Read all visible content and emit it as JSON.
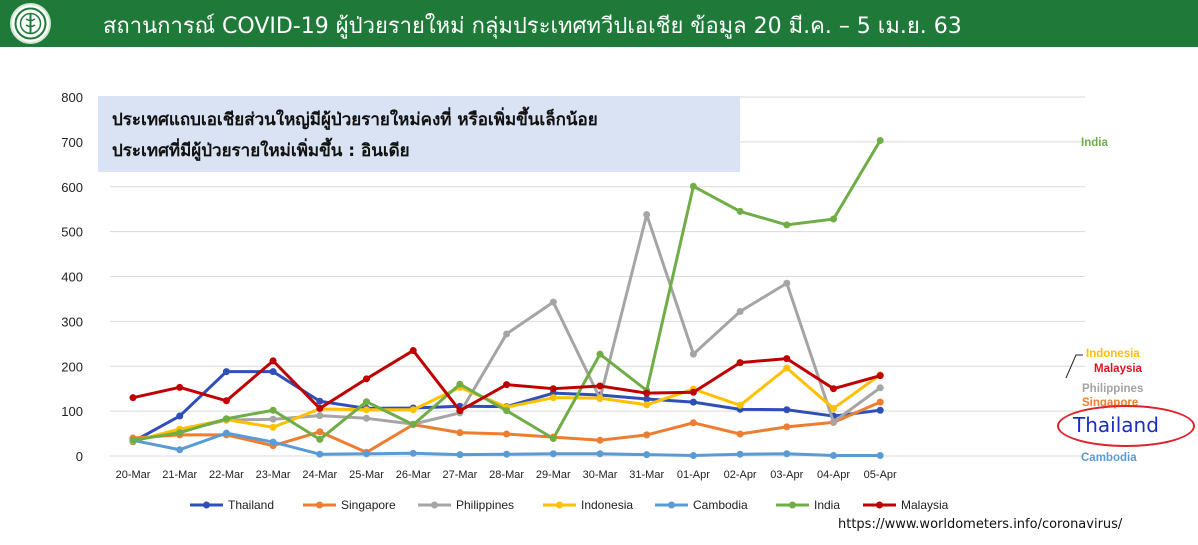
{
  "header": {
    "title": "สถานการณ์ COVID-19 ผู้ป่วยรายใหม่ กลุ่มประเทศทวีปเอเชีย ข้อมูล 20 มี.ค. – 5 เม.ย. 63",
    "background_color": "#1f7a3a"
  },
  "note": {
    "line1": "ประเทศแถบเอเชียส่วนใหญ่มีผู้ป่วยรายใหม่คงที่ หรือเพิ่มขึ้นเล็กน้อย",
    "line2": "ประเทศที่มีผู้ป่วยรายใหม่เพิ่มขึ้น : อินเดีย"
  },
  "source": "https://www.worldometers.info/coronavirus/",
  "callout": "Thailand",
  "chart_data": {
    "type": "line",
    "categories": [
      "20-Mar",
      "21-Mar",
      "22-Mar",
      "23-Mar",
      "24-Mar",
      "25-Mar",
      "26-Mar",
      "27-Mar",
      "28-Mar",
      "29-Mar",
      "30-Mar",
      "31-Mar",
      "01-Apr",
      "02-Apr",
      "03-Apr",
      "04-Apr",
      "05-Apr"
    ],
    "ylim": [
      0,
      800
    ],
    "yticks": [
      0,
      100,
      200,
      300,
      400,
      500,
      600,
      700,
      800
    ],
    "grid": true,
    "legend_position": "bottom",
    "series": [
      {
        "name": "Thailand",
        "color": "#2e4fb8",
        "values": [
          32,
          89,
          188,
          188,
          122,
          106,
          107,
          111,
          110,
          140,
          136,
          127,
          120,
          104,
          103,
          89,
          102
        ]
      },
      {
        "name": "Singapore",
        "color": "#ed7d31",
        "values": [
          40,
          47,
          47,
          23,
          54,
          8,
          70,
          52,
          49,
          42,
          35,
          47,
          74,
          49,
          65,
          75,
          120
        ]
      },
      {
        "name": "Philippines",
        "color": "#a5a5a5",
        "values": [
          35,
          55,
          80,
          82,
          90,
          84,
          71,
          96,
          272,
          343,
          128,
          538,
          227,
          322,
          385,
          76,
          152
        ]
      },
      {
        "name": "Indonesia",
        "color": "#ffc000",
        "values": [
          33,
          60,
          81,
          64,
          105,
          103,
          103,
          153,
          109,
          130,
          129,
          114,
          149,
          113,
          196,
          106,
          181
        ]
      },
      {
        "name": "Cambodia",
        "color": "#5b9bd5",
        "values": [
          35,
          14,
          51,
          31,
          4,
          5,
          6,
          3,
          4,
          5,
          5,
          3,
          1,
          4,
          5,
          1,
          1
        ]
      },
      {
        "name": "India",
        "color": "#70ad47",
        "values": [
          35,
          52,
          83,
          102,
          37,
          121,
          70,
          160,
          101,
          39,
          227,
          146,
          601,
          545,
          515,
          528,
          703
        ]
      },
      {
        "name": "Malaysia",
        "color": "#c00000",
        "values": [
          130,
          153,
          123,
          212,
          106,
          172,
          235,
          101,
          159,
          150,
          156,
          140,
          142,
          208,
          217,
          150,
          179
        ]
      }
    ],
    "end_labels": [
      {
        "text": "India",
        "color": "#70ad47"
      },
      {
        "text": "Indonesia",
        "color": "#ffc000"
      },
      {
        "text": "Malaysia",
        "color": "#e01020"
      },
      {
        "text": "Philippines",
        "color": "#a5a5a5"
      },
      {
        "text": "Singapore",
        "color": "#ed7d31"
      },
      {
        "text": "Cambodia",
        "color": "#5b9bd5"
      }
    ]
  }
}
